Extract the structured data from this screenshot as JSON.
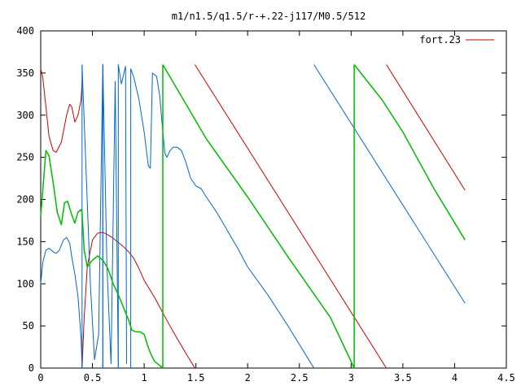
{
  "chart_data": {
    "type": "line",
    "title": "m1/n1.5/q1.5/r-+.22-j117/M0.5/512",
    "xlabel": "",
    "ylabel": "",
    "xlim": [
      0,
      4.5
    ],
    "ylim": [
      0,
      400
    ],
    "grid": false,
    "legend_position": "top-right",
    "x_ticks": [
      "0",
      "0.5",
      "1",
      "1.5",
      "2",
      "2.5",
      "3",
      "3.5",
      "4",
      "4.5"
    ],
    "y_ticks": [
      "0",
      "50",
      "100",
      "150",
      "200",
      "250",
      "300",
      "350",
      "400"
    ],
    "series": [
      {
        "name": "fort.23",
        "color": "#cc0000",
        "segments": [
          [
            [
              0.0,
              355
            ],
            [
              0.02,
              345
            ],
            [
              0.05,
              310
            ],
            [
              0.08,
              275
            ],
            [
              0.12,
              258
            ],
            [
              0.15,
              256
            ],
            [
              0.2,
              268
            ],
            [
              0.25,
              300
            ],
            [
              0.28,
              313
            ],
            [
              0.3,
              310
            ],
            [
              0.33,
              292
            ],
            [
              0.36,
              300
            ],
            [
              0.39,
              318
            ],
            [
              0.4,
              340
            ]
          ],
          [
            [
              0.4,
              0
            ],
            [
              0.42,
              60
            ],
            [
              0.45,
              120
            ],
            [
              0.5,
              152
            ],
            [
              0.55,
              160
            ],
            [
              0.6,
              161
            ],
            [
              0.65,
              158
            ],
            [
              0.7,
              154
            ],
            [
              0.75,
              149
            ],
            [
              0.8,
              144
            ],
            [
              0.85,
              138
            ],
            [
              0.9,
              130
            ],
            [
              0.95,
              118
            ],
            [
              1.0,
              104
            ],
            [
              1.1,
              84
            ],
            [
              1.2,
              61
            ],
            [
              1.3,
              39
            ],
            [
              1.4,
              18
            ],
            [
              1.49,
              0
            ]
          ],
          [
            [
              1.49,
              360
            ],
            [
              3.34,
              0
            ]
          ],
          [
            [
              3.34,
              360
            ],
            [
              4.1,
              211
            ]
          ]
        ]
      },
      {
        "name": "",
        "color": "#0066cc",
        "segments": [
          [
            [
              0.0,
              100
            ],
            [
              0.02,
              125
            ],
            [
              0.05,
              140
            ],
            [
              0.08,
              142
            ],
            [
              0.12,
              138
            ],
            [
              0.15,
              136
            ],
            [
              0.18,
              140
            ],
            [
              0.22,
              152
            ],
            [
              0.25,
              155
            ],
            [
              0.28,
              148
            ],
            [
              0.3,
              132
            ],
            [
              0.33,
              112
            ],
            [
              0.36,
              85
            ],
            [
              0.39,
              35
            ],
            [
              0.4,
              0
            ]
          ],
          [
            [
              0.4,
              0
            ],
            [
              0.4,
              360
            ]
          ],
          [
            [
              0.4,
              360
            ],
            [
              0.48,
              100
            ],
            [
              0.52,
              10
            ],
            [
              0.56,
              40
            ],
            [
              0.6,
              360
            ],
            [
              0.6,
              0
            ]
          ],
          [
            [
              0.6,
              0
            ],
            [
              0.6,
              360
            ],
            [
              0.64,
              120
            ],
            [
              0.68,
              5
            ],
            [
              0.72,
              340
            ],
            [
              0.75,
              0
            ]
          ],
          [
            [
              0.75,
              0
            ],
            [
              0.75,
              360
            ],
            [
              0.78,
              337
            ],
            [
              0.82,
              358
            ],
            [
              0.83,
              5
            ]
          ],
          [
            [
              0.87,
              0
            ],
            [
              0.87,
              355
            ],
            [
              0.9,
              345
            ],
            [
              0.95,
              318
            ],
            [
              1.0,
              280
            ],
            [
              1.04,
              240
            ],
            [
              1.06,
              237
            ],
            [
              1.08,
              350
            ],
            [
              1.12,
              346
            ],
            [
              1.15,
              323
            ],
            [
              1.18,
              280
            ],
            [
              1.2,
              255
            ],
            [
              1.22,
              250
            ],
            [
              1.25,
              258
            ],
            [
              1.28,
              262
            ],
            [
              1.32,
              262
            ],
            [
              1.36,
              258
            ],
            [
              1.4,
              245
            ],
            [
              1.45,
              225
            ],
            [
              1.5,
              216
            ],
            [
              1.55,
              213
            ],
            [
              1.6,
              203
            ],
            [
              1.7,
              185
            ],
            [
              1.8,
              164
            ],
            [
              1.9,
              143
            ],
            [
              2.0,
              120
            ],
            [
              2.2,
              86
            ],
            [
              2.4,
              48
            ],
            [
              2.64,
              0
            ]
          ],
          [
            [
              2.64,
              360
            ],
            [
              4.1,
              77
            ]
          ]
        ]
      },
      {
        "name": "",
        "color": "#00bb00",
        "segments": [
          [
            [
              0.0,
              180
            ],
            [
              0.02,
              210
            ],
            [
              0.05,
              258
            ],
            [
              0.08,
              252
            ],
            [
              0.12,
              220
            ],
            [
              0.16,
              185
            ],
            [
              0.2,
              170
            ],
            [
              0.23,
              196
            ],
            [
              0.26,
              198
            ],
            [
              0.3,
              182
            ],
            [
              0.33,
              172
            ],
            [
              0.36,
              185
            ],
            [
              0.39,
              188
            ],
            [
              0.4,
              184
            ],
            [
              0.42,
              140
            ],
            [
              0.45,
              120
            ],
            [
              0.5,
              128
            ],
            [
              0.55,
              133
            ],
            [
              0.6,
              128
            ],
            [
              0.65,
              118
            ],
            [
              0.7,
              100
            ],
            [
              0.75,
              87
            ],
            [
              0.8,
              72
            ],
            [
              0.85,
              57
            ],
            [
              0.88,
              45
            ],
            [
              0.92,
              43
            ],
            [
              0.96,
              43
            ],
            [
              1.0,
              40
            ],
            [
              1.03,
              28
            ],
            [
              1.06,
              18
            ],
            [
              1.1,
              8
            ],
            [
              1.18,
              0
            ]
          ],
          [
            [
              1.18,
              0
            ],
            [
              1.18,
              360
            ]
          ],
          [
            [
              1.18,
              360
            ],
            [
              1.6,
              272
            ],
            [
              2.0,
              203
            ],
            [
              2.4,
              130
            ],
            [
              2.8,
              60
            ],
            [
              3.03,
              0
            ]
          ],
          [
            [
              3.03,
              0
            ],
            [
              3.03,
              360
            ]
          ],
          [
            [
              3.03,
              360
            ],
            [
              3.3,
              318
            ],
            [
              3.5,
              280
            ],
            [
              3.8,
              213
            ],
            [
              4.1,
              152
            ]
          ]
        ]
      }
    ]
  }
}
